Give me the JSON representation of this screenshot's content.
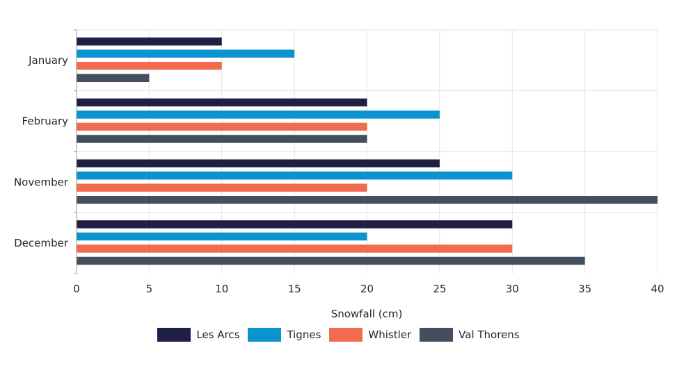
{
  "chart_data": {
    "type": "bar",
    "orientation": "horizontal",
    "categories": [
      "January",
      "February",
      "November",
      "December"
    ],
    "series": [
      {
        "name": "Les Arcs",
        "color": "#1f1f45",
        "values": [
          10,
          20,
          25,
          30
        ]
      },
      {
        "name": "Tignes",
        "color": "#0b93cd",
        "values": [
          15,
          25,
          30,
          20
        ]
      },
      {
        "name": "Whistler",
        "color": "#f16b4f",
        "values": [
          10,
          20,
          20,
          30
        ]
      },
      {
        "name": "Val Thorens",
        "color": "#434e5e",
        "values": [
          5,
          20,
          40,
          35
        ]
      }
    ],
    "xlabel": "Snowfall (cm)",
    "ylabel": "",
    "xlim": [
      0,
      40
    ],
    "xticks": [
      0,
      5,
      10,
      15,
      20,
      25,
      30,
      35,
      40
    ],
    "grid": true,
    "legend_position": "bottom"
  }
}
